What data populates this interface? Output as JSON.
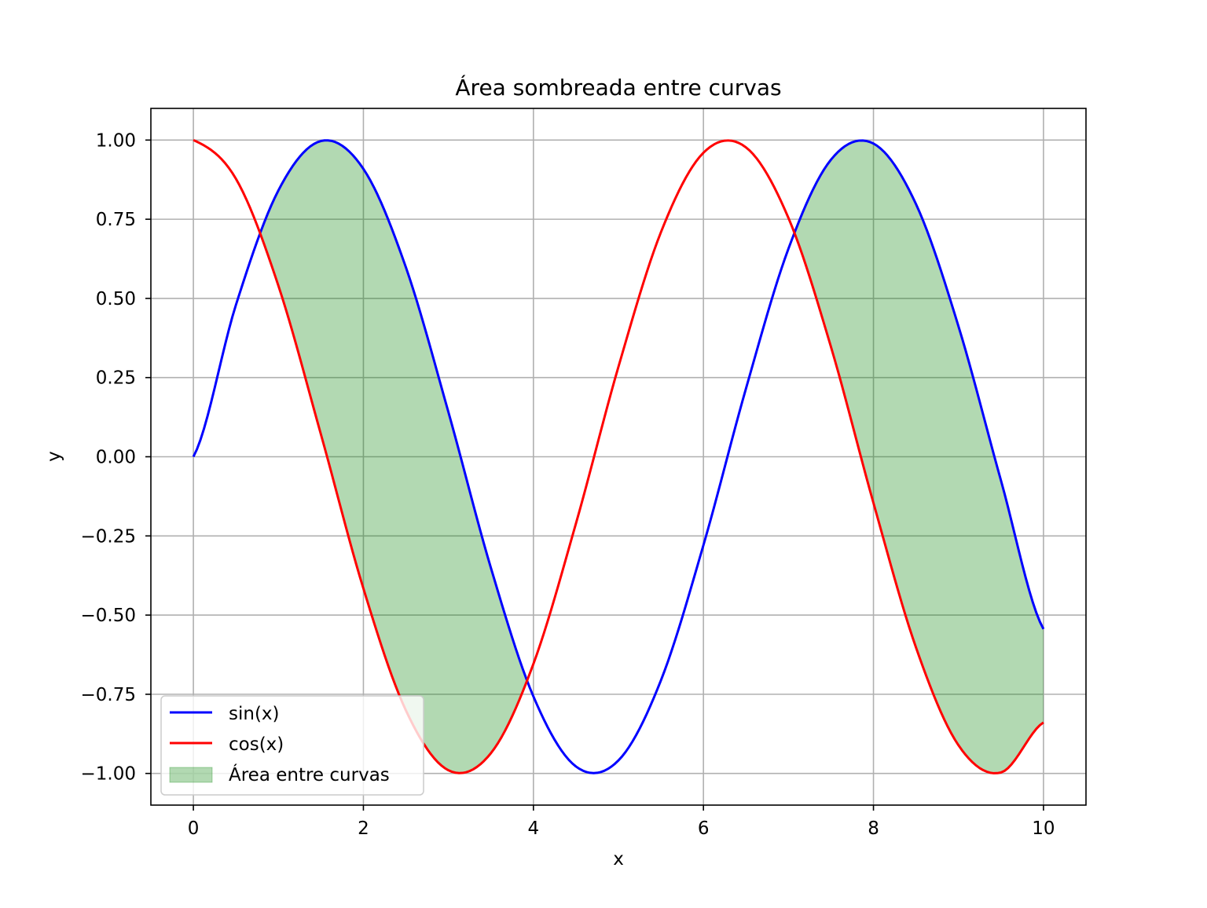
{
  "chart_data": {
    "type": "line",
    "title": "Área sombreada entre curvas",
    "xlabel": "x",
    "ylabel": "y",
    "xlim": [
      -0.5,
      10.5
    ],
    "ylim": [
      -1.1,
      1.1
    ],
    "grid": true,
    "legend_position": "lower-left",
    "x_ticks": [
      0,
      2,
      4,
      6,
      8,
      10
    ],
    "x_tick_labels": [
      "0",
      "2",
      "4",
      "6",
      "8",
      "10"
    ],
    "y_ticks": [
      1.0,
      0.75,
      0.5,
      0.25,
      0.0,
      -0.25,
      -0.5,
      -0.75,
      -1.0
    ],
    "y_tick_labels": [
      "1.00",
      "0.75",
      "0.50",
      "0.25",
      "0.00",
      "−0.25",
      "−0.50",
      "−0.75",
      "−1.00"
    ],
    "x": [
      0.0,
      0.5,
      1.0,
      1.5,
      2.0,
      2.5,
      3.0,
      3.5,
      4.0,
      4.5,
      5.0,
      5.5,
      6.0,
      6.5,
      7.0,
      7.5,
      8.0,
      8.5,
      9.0,
      9.5,
      10.0
    ],
    "series": [
      {
        "name": "sin(x)",
        "color": "#0000ff",
        "values": [
          0.0,
          0.479,
          0.841,
          0.997,
          0.909,
          0.598,
          0.141,
          -0.351,
          -0.757,
          -0.978,
          -0.959,
          -0.706,
          -0.279,
          0.215,
          0.657,
          0.938,
          0.989,
          0.798,
          0.412,
          -0.075,
          -0.544
        ]
      },
      {
        "name": "cos(x)",
        "color": "#ff0000",
        "values": [
          1.0,
          0.878,
          0.54,
          0.071,
          -0.416,
          -0.801,
          -0.99,
          -0.936,
          -0.654,
          -0.211,
          0.284,
          0.709,
          0.96,
          0.977,
          0.754,
          0.347,
          -0.146,
          -0.602,
          -0.911,
          -0.997,
          -0.839
        ]
      }
    ],
    "fill_between": {
      "name": "Área entre curvas",
      "color": "#008000",
      "alpha": 0.3,
      "condition": "sin(x) > cos(x)"
    }
  }
}
